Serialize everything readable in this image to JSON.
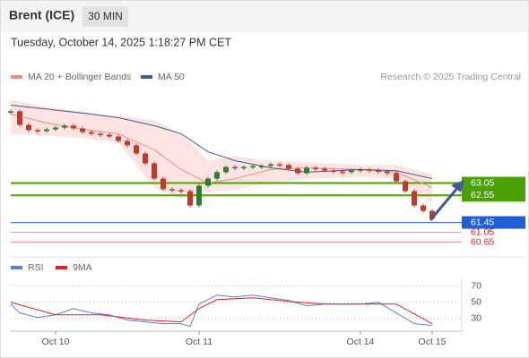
{
  "chart_data": {
    "type": "candlestick",
    "title": "Brent (ICE)",
    "timeframe": "30 MIN",
    "subtitle": "Tuesday, October 14, 2025 1:18:27 PM CET",
    "credit": "Research © 2025 Trading Central",
    "xlim": [
      0,
      50
    ],
    "xticks": [
      {
        "value": 5,
        "label": "Oct 10"
      },
      {
        "value": 21,
        "label": "Oct 11"
      },
      {
        "value": 39,
        "label": "Oct 14"
      },
      {
        "value": 47,
        "label": "Oct 15"
      }
    ],
    "ylim": [
      60.2,
      67.1
    ],
    "up_color": "#2f7d32",
    "down_color": "#c0392b",
    "close": [
      65.96,
      65.41,
      65.2,
      65.16,
      65.23,
      65.3,
      65.38,
      65.27,
      65.12,
      65.05,
      65.01,
      64.94,
      64.76,
      64.58,
      64.25,
      63.85,
      63.23,
      62.8,
      62.76,
      62.72,
      62.14,
      62.94,
      63.23,
      63.49,
      63.7,
      63.67,
      63.7,
      63.74,
      63.74,
      63.81,
      63.78,
      63.63,
      63.45,
      63.67,
      63.63,
      63.56,
      63.52,
      63.49,
      63.56,
      63.6,
      63.56,
      63.52,
      63.45,
      63.12,
      62.72,
      62.14,
      61.92,
      61.6
    ],
    "series": [
      {
        "name": "MA 20 + Bollinger Bands",
        "color": "#f08a80",
        "band_color": "#fde3e1",
        "x": [
          0,
          4,
          8,
          12,
          16,
          19,
          22,
          25,
          29,
          33,
          39,
          43,
          47
        ],
        "values": [
          65.85,
          65.49,
          65.23,
          65.05,
          64.4,
          63.6,
          63.05,
          63.23,
          63.6,
          63.67,
          63.6,
          63.49,
          62.87
        ],
        "upper": [
          66.43,
          66.14,
          65.96,
          65.78,
          65.6,
          65.05,
          63.96,
          64.14,
          63.96,
          63.89,
          63.78,
          63.78,
          63.41
        ],
        "lower": [
          65.05,
          64.98,
          64.87,
          64.69,
          62.87,
          62.43,
          62.69,
          62.8,
          63.05,
          63.23,
          63.3,
          63.23,
          62.21
        ]
      },
      {
        "name": "MA 50",
        "color": "#3d5a99",
        "x": [
          0,
          4,
          8,
          12,
          16,
          19,
          22,
          25,
          29,
          33,
          39,
          43,
          47
        ],
        "values": [
          66.21,
          66.05,
          65.89,
          65.7,
          65.38,
          65.05,
          64.32,
          63.96,
          63.67,
          63.49,
          63.6,
          63.55,
          63.23
        ]
      }
    ],
    "levels": [
      {
        "value": 63.05,
        "color": "#4aa100"
      },
      {
        "value": 62.55,
        "color": "#4aa100"
      },
      {
        "value": 61.45,
        "color": "#1f5fd6"
      },
      {
        "value": 61.05,
        "color": "#e0201b"
      },
      {
        "value": 60.65,
        "color": "#e0201b"
      }
    ],
    "rsi": {
      "ylim": [
        14,
        81
      ],
      "yticks": [
        30,
        50,
        70
      ],
      "series": [
        {
          "name": "RSI",
          "color": "#5b7fd6",
          "x": [
            0,
            1,
            3,
            5,
            7,
            9,
            11,
            13,
            15,
            17,
            19,
            20,
            21,
            23,
            25,
            27,
            29,
            31,
            33,
            35,
            37,
            39,
            41,
            43,
            45,
            47
          ],
          "values": [
            47.8,
            36.7,
            31.1,
            34.4,
            42.2,
            36.7,
            34.4,
            27.8,
            25.6,
            23.3,
            23.3,
            20,
            47.8,
            58.9,
            56.7,
            58.9,
            55.6,
            52.2,
            45.6,
            47.8,
            47.8,
            47.8,
            50,
            36.7,
            23.3,
            21.1
          ]
        },
        {
          "name": "9MA",
          "color": "#e0201b",
          "x": [
            0,
            5,
            10,
            15,
            19,
            21,
            23,
            27,
            31,
            35,
            39,
            43,
            47
          ],
          "values": [
            50,
            34.4,
            34.4,
            27.8,
            25.6,
            42.2,
            53.3,
            55.6,
            51.1,
            47.8,
            47.8,
            47.8,
            23.3
          ]
        }
      ]
    }
  }
}
